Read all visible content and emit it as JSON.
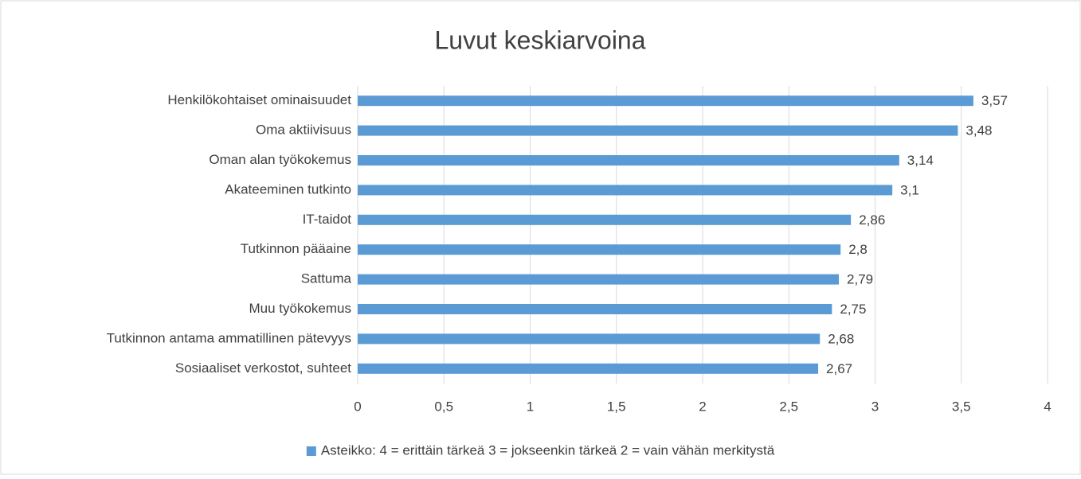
{
  "chart_data": {
    "type": "barh",
    "title": "Luvut keskiarvoina",
    "categories": [
      "Henkilökohtaiset ominaisuudet",
      "Oma aktiivisuus",
      "Oman alan työkokemus",
      "Akateeminen tutkinto",
      "IT-taidot",
      "Tutkinnon pääaine",
      "Sattuma",
      "Muu työkokemus",
      "Tutkinnon antama ammatillinen pätevyys",
      "Sosiaaliset verkostot, suhteet"
    ],
    "series": [
      {
        "name": "Asteikko: 4 = erittäin tärkeä 3 = jokseenkin tärkeä 2 = vain vähän merkitystä",
        "color": "#5b9bd5",
        "values": [
          3.57,
          3.48,
          3.14,
          3.1,
          2.86,
          2.8,
          2.79,
          2.75,
          2.68,
          2.67
        ],
        "value_labels": [
          "3,57",
          "3,48",
          "3,14",
          "3,1",
          "2,86",
          "2,8",
          "2,79",
          "2,75",
          "2,68",
          "2,67"
        ]
      }
    ],
    "xlim": [
      0,
      4
    ],
    "xticks": [
      0,
      {
        "value": 0.5,
        "label": "0,5"
      },
      1,
      {
        "value": 1.5,
        "label": "1,5"
      },
      2,
      {
        "value": 2.5,
        "label": "2,5"
      },
      3,
      {
        "value": 3.5,
        "label": "3,5"
      },
      4
    ],
    "grid": true,
    "legend": "bottom"
  }
}
